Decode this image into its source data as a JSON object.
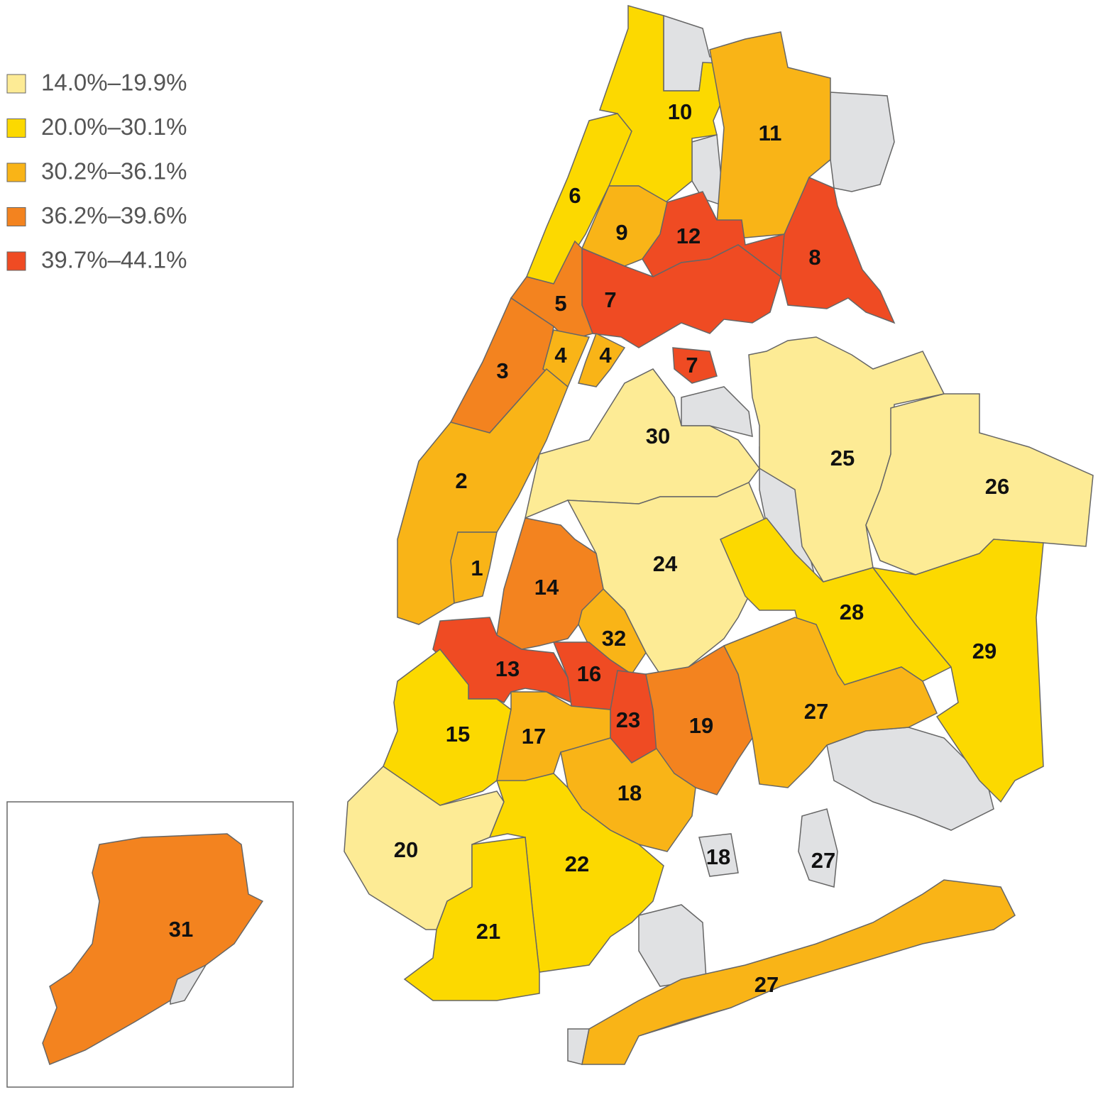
{
  "legend": [
    {
      "label": "14.0%–19.9%",
      "color": "#fdeb95"
    },
    {
      "label": "20.0%–30.1%",
      "color": "#fcd900"
    },
    {
      "label": "30.2%–36.1%",
      "color": "#f9b417"
    },
    {
      "label": "36.2%–39.6%",
      "color": "#f3831f"
    },
    {
      "label": "39.7%–44.1%",
      "color": "#ef4b23"
    }
  ],
  "districts": [
    {
      "label": "10",
      "class": 1
    },
    {
      "label": "6",
      "class": 1
    },
    {
      "label": "11",
      "class": 2
    },
    {
      "label": "9",
      "class": 2
    },
    {
      "label": "12",
      "class": 4
    },
    {
      "label": "8",
      "class": 4
    },
    {
      "label": "7",
      "class": 4
    },
    {
      "label": "5",
      "class": 3
    },
    {
      "label": "3",
      "class": 3
    },
    {
      "label": "4",
      "class": 2
    },
    {
      "label": "4",
      "class": 2
    },
    {
      "label": "7",
      "class": 4
    },
    {
      "label": "2",
      "class": 2
    },
    {
      "label": "1",
      "class": 2
    },
    {
      "label": "30",
      "class": 0
    },
    {
      "label": "25",
      "class": 0
    },
    {
      "label": "26",
      "class": 0
    },
    {
      "label": "24",
      "class": 0
    },
    {
      "label": "28",
      "class": 1
    },
    {
      "label": "29",
      "class": 1
    },
    {
      "label": "14",
      "class": 3
    },
    {
      "label": "32",
      "class": 2
    },
    {
      "label": "13",
      "class": 4
    },
    {
      "label": "16",
      "class": 4
    },
    {
      "label": "23",
      "class": 4
    },
    {
      "label": "19",
      "class": 3
    },
    {
      "label": "27",
      "class": 2
    },
    {
      "label": "15",
      "class": 1
    },
    {
      "label": "17",
      "class": 2
    },
    {
      "label": "18",
      "class": 2
    },
    {
      "label": "20",
      "class": 0
    },
    {
      "label": "22",
      "class": 1
    },
    {
      "label": "21",
      "class": 1
    },
    {
      "label": "27",
      "class": 2
    },
    {
      "label": "31",
      "class": 3
    },
    {
      "label": "18"
    },
    {
      "label": "27"
    }
  ]
}
